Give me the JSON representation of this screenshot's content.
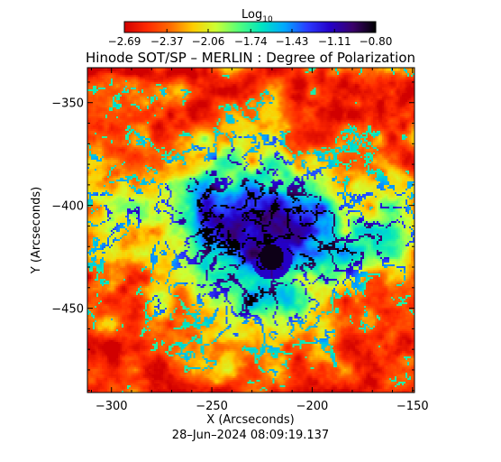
{
  "chart_data": {
    "type": "heatmap",
    "title": "Hinode SOT/SP – MERLIN : Degree of Polarization",
    "xlabel": "X (Arcseconds)",
    "ylabel": "Y (Arcseconds)",
    "timestamp": "28–Jun–2024 08:09:19.137",
    "colorbar": {
      "label_main": "Log",
      "label_sub": "10",
      "min": -2.69,
      "max": -0.8,
      "ticks": [
        "-2.69",
        "-2.37",
        "-2.06",
        "-1.74",
        "-1.43",
        "-1.11",
        "-0.80"
      ],
      "tick_text": [
        "−2.69",
        "−2.37",
        "−2.06",
        "−1.74",
        "−1.43",
        "−1.11",
        "−0.80"
      ]
    },
    "xlim": [
      -312,
      -149
    ],
    "ylim": [
      -491,
      -333
    ],
    "xticks": [
      -300,
      -250,
      -200,
      -150
    ],
    "xtick_text": [
      "−300",
      "−250",
      "−200",
      "−150"
    ],
    "yticks": [
      -350,
      -400,
      -450
    ],
    "ytick_text": [
      "−350",
      "−400",
      "−450"
    ],
    "colormap": [
      "#d10000",
      "#ff2a00",
      "#ff6a00",
      "#ffcc00",
      "#ccff33",
      "#55ff7a",
      "#00e5c0",
      "#00a8ff",
      "#2a3cff",
      "#2400c8",
      "#3a006a",
      "#000000"
    ]
  }
}
